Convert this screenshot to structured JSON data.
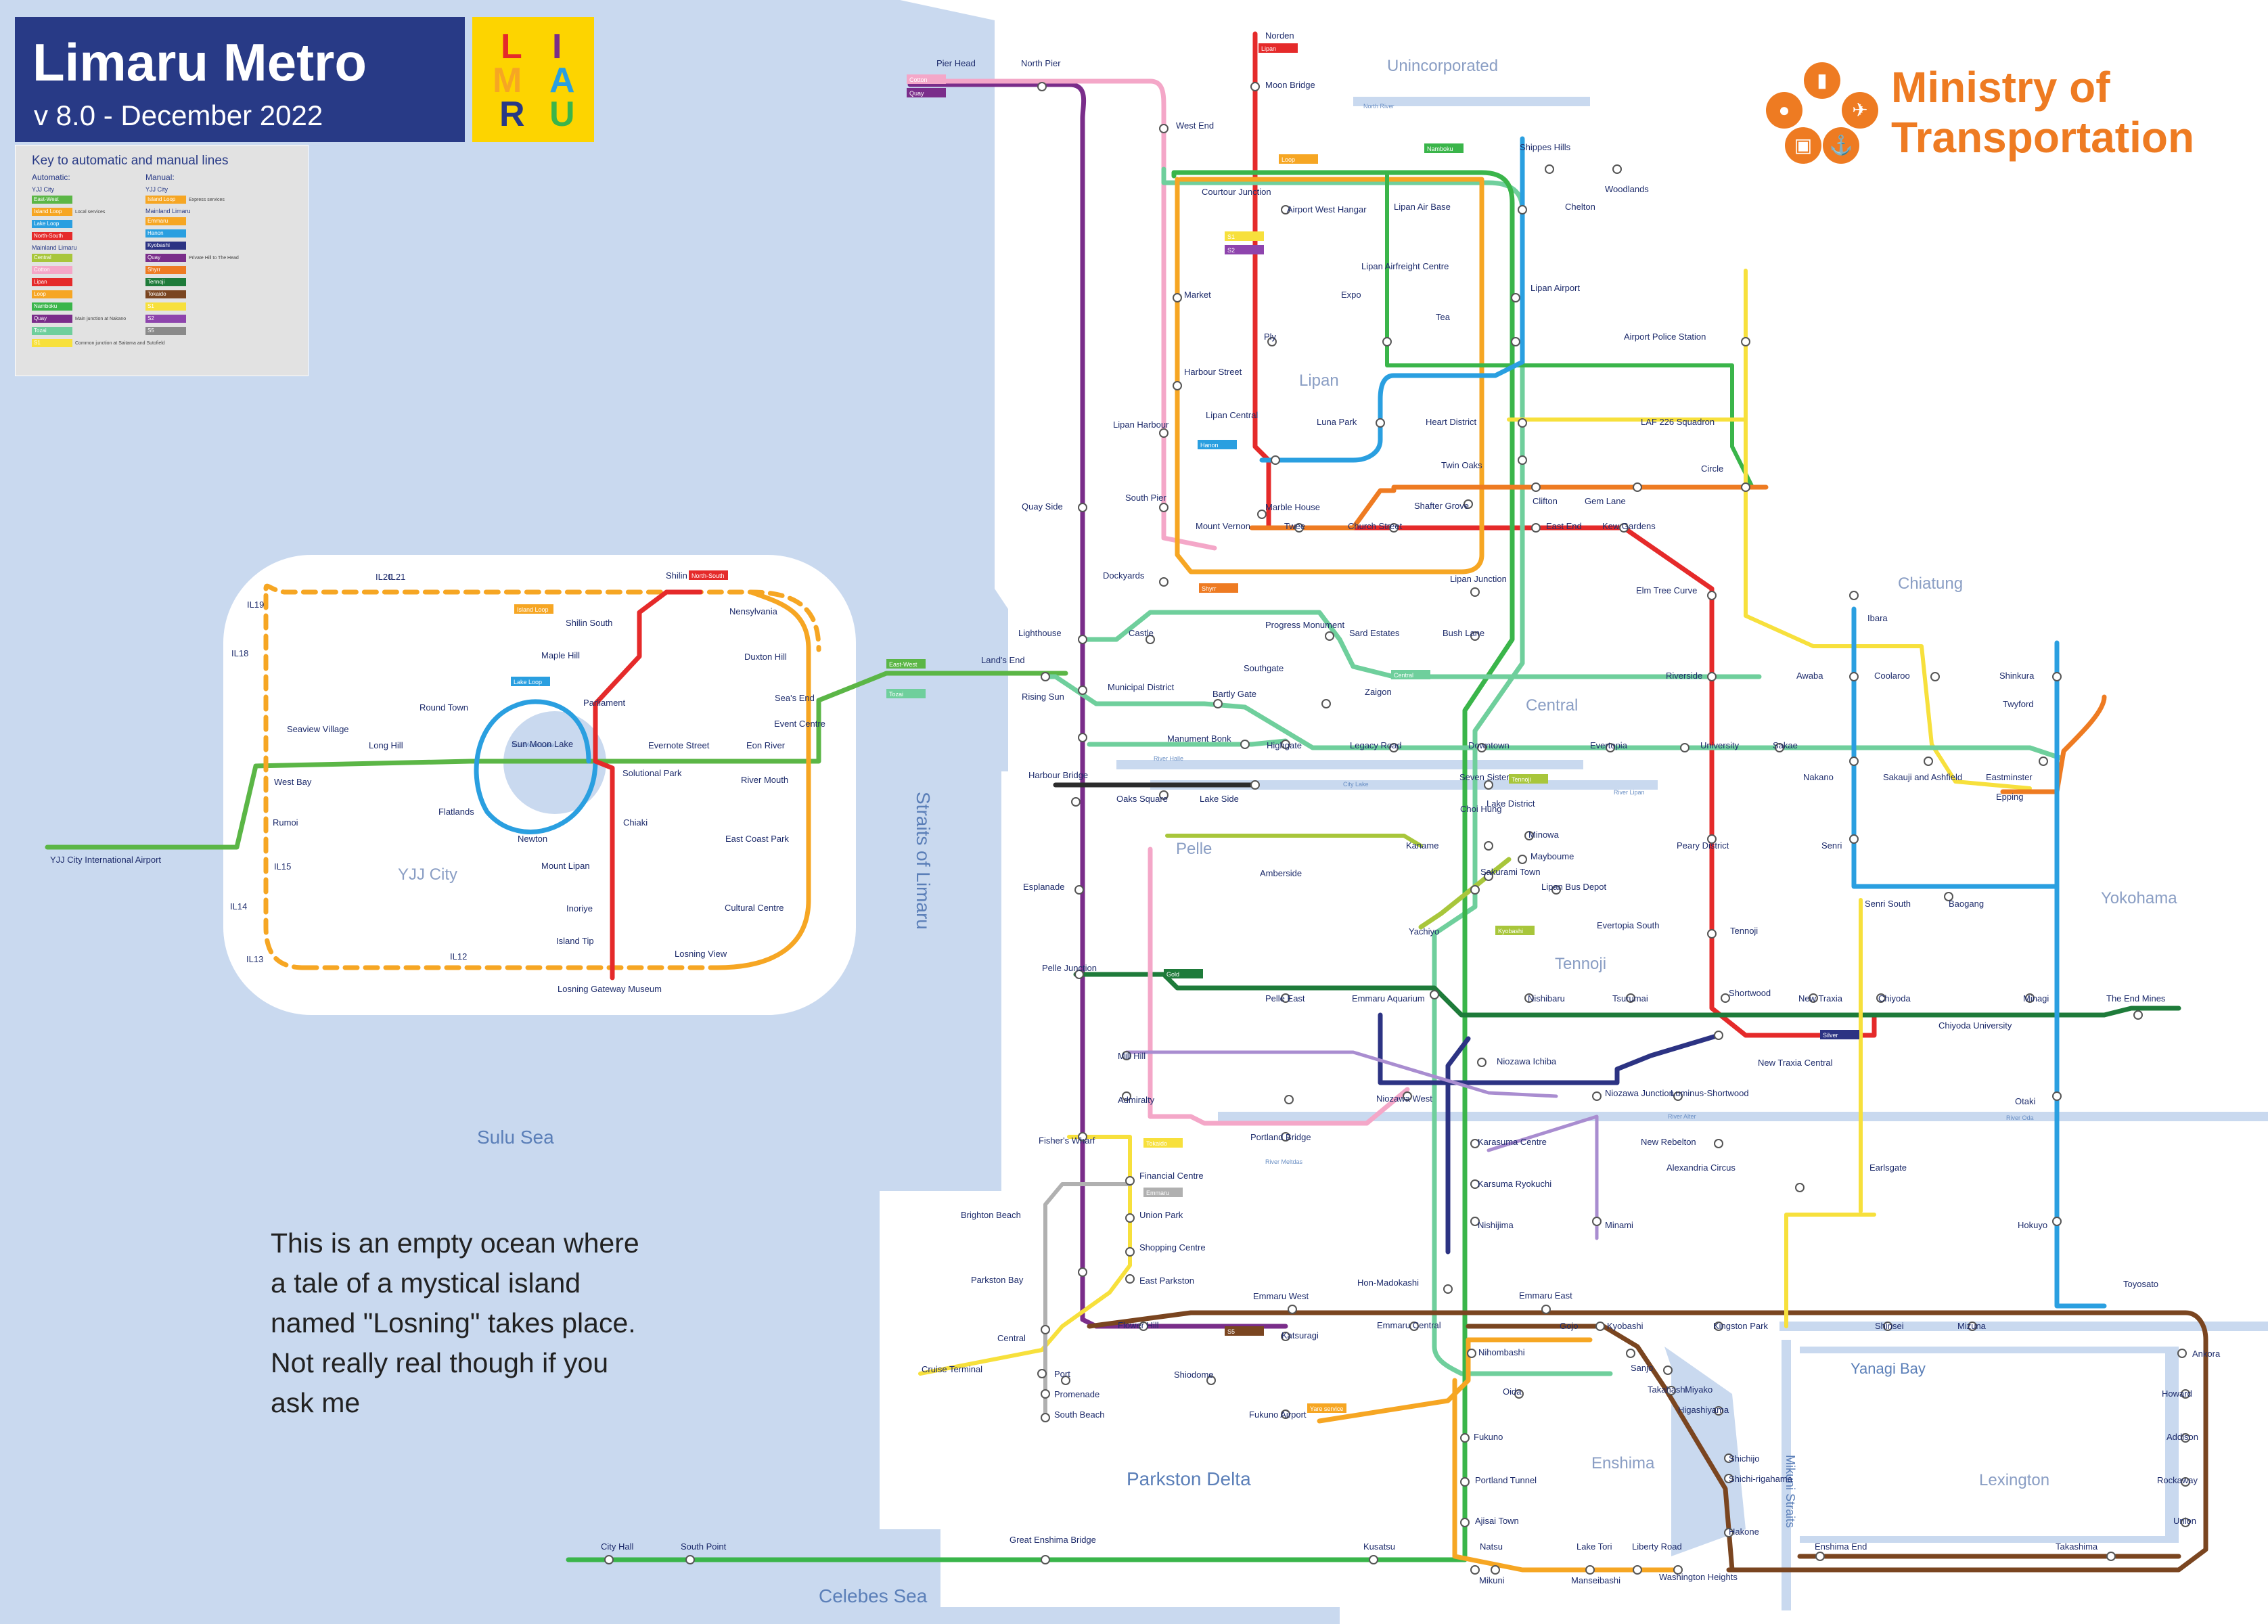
{
  "header": {
    "title": "Limaru Metro",
    "version": "v 8.0 - December 2022"
  },
  "logo": {
    "letters": [
      "L",
      "I",
      "M",
      "A",
      "R",
      "U"
    ]
  },
  "key": {
    "title": "Key to automatic and manual lines",
    "automatic_heading": "Automatic:",
    "manual_heading": "Manual:",
    "automatic_groups": [
      {
        "group": "YJJ City",
        "lines": [
          {
            "name": "East-West",
            "color": "#5bb646",
            "note": ""
          },
          {
            "name": "Island Loop",
            "color": "#f6a623",
            "note": "Local services"
          },
          {
            "name": "Lake Loop",
            "color": "#2a9fe0",
            "note": ""
          },
          {
            "name": "North-South",
            "color": "#e52a2a",
            "note": ""
          }
        ]
      },
      {
        "group": "Mainland Limaru",
        "lines": [
          {
            "name": "Central",
            "color": "#a8c63b",
            "note": ""
          },
          {
            "name": "Cotton",
            "color": "#f4a7c8",
            "note": ""
          },
          {
            "name": "Lipan",
            "color": "#e52a2a",
            "note": ""
          },
          {
            "name": "Loop",
            "color": "#f6a623",
            "note": ""
          },
          {
            "name": "Namboku",
            "color": "#3ab54a",
            "note": ""
          },
          {
            "name": "Quay",
            "color": "#7a2d8a",
            "note": "Main junction at Nakano"
          },
          {
            "name": "Tozai",
            "color": "#6fcf9c",
            "note": ""
          },
          {
            "name": "S1",
            "color": "#f7e03c",
            "note": "Common junction at Saitama and Sutofield"
          }
        ]
      }
    ],
    "manual_groups": [
      {
        "group": "YJJ City",
        "lines": [
          {
            "name": "Island Loop",
            "color": "#f6a623",
            "note": "Express services"
          }
        ]
      },
      {
        "group": "Mainland Limaru",
        "lines": [
          {
            "name": "Emmaru",
            "color": "#f6a623",
            "note": ""
          },
          {
            "name": "Hanon",
            "color": "#2a9fe0",
            "note": ""
          },
          {
            "name": "Kyobashi",
            "color": "#2c3383",
            "note": ""
          },
          {
            "name": "Quay",
            "color": "#7a2d8a",
            "note": "Private Hill to The Head"
          },
          {
            "name": "Shyrr",
            "color": "#ee7b22",
            "note": ""
          },
          {
            "name": "Tennoji",
            "color": "#1e7b3a",
            "note": ""
          },
          {
            "name": "Tokaido",
            "color": "#7a4520",
            "note": ""
          },
          {
            "name": "S1",
            "color": "#f7e03c",
            "note": ""
          },
          {
            "name": "S2",
            "color": "#8e44ad",
            "note": ""
          },
          {
            "name": "S5",
            "color": "#8a8a8a",
            "note": ""
          }
        ]
      }
    ]
  },
  "ministry": {
    "line1": "Ministry of",
    "line2": "Transportation",
    "icons": [
      "pedestrian-icon",
      "car-icon",
      "plane-icon",
      "train-icon",
      "anchor-icon"
    ]
  },
  "ocean_note": "This is an empty ocean where a tale of a mystical island named \"Losning\" takes place. Not really real though if you ask me",
  "line_colors": {
    "east_west": "#5bb646",
    "island_loop": "#f6a623",
    "lake_loop": "#2a9fe0",
    "north_south": "#e52a2a",
    "namboku": "#3ab54a",
    "lipan": "#e52a2a",
    "loop": "#f6a623",
    "cotton": "#f4a7c8",
    "quay": "#7a2d8a",
    "tozai": "#6fcf9c",
    "central": "#a8c63b",
    "tennoji": "#1e7b3a",
    "tokaido": "#7a4520",
    "shyrr": "#ee7b22",
    "hanon": "#2a9fe0",
    "kyobashi": "#2c3383",
    "s1": "#f7e03c",
    "s5": "#b0b0b0",
    "purple_light": "#a98dd0"
  },
  "labels": {
    "areas": [
      "Unincorporated",
      "Lipan",
      "Central",
      "Chiatung",
      "Pelle",
      "Tennoji",
      "Yokohama",
      "YJJ City",
      "Enshima",
      "Lexington"
    ],
    "waters": [
      "Sulu Sea",
      "Straits of Limaru",
      "Parkston Delta",
      "Celebes Sea",
      "Yanagi Bay",
      "Mikuni Straits"
    ],
    "rivers": [
      "North River",
      "Sun Moon Lake",
      "River Halle",
      "City Lake",
      "River Lipan",
      "River Alter",
      "River Oda",
      "River Meltdas"
    ],
    "stations": {
      "yjj": [
        "Shilin",
        "Nensylvania",
        "IL21",
        "IL20",
        "IL19",
        "IL18",
        "Shilin South",
        "Maple Hill",
        "Duxton Hill",
        "Round Town",
        "Parliament",
        "Sea's End",
        "Event Centre",
        "Seaview Village",
        "Long Hill",
        "Evernote Street",
        "Eon River",
        "Sun Moon Lake",
        "Solutional Park",
        "West Bay",
        "River Mouth",
        "Flatlands",
        "Rumoi",
        "Chiaki",
        "Newton",
        "East Coast Park",
        "YJJ City International Airport",
        "IL15",
        "Mount Lipan",
        "IL14",
        "Inoriye",
        "Cultural Centre",
        "Island Tip",
        "IL13",
        "IL12",
        "Losning View",
        "Losning Gateway Museum"
      ],
      "north": [
        "Norden",
        "Moon Bridge",
        "Pier Head",
        "North Pier",
        "West End",
        "Shippes Hills",
        "Woodlands",
        "Courtour Junction",
        "Airport West Hangar",
        "Lipan Air Base",
        "Chelton",
        "Market",
        "Lipan Airfreight Centre",
        "Expo",
        "Lipan Airport",
        "Tea",
        "Ply",
        "Airport Police Station",
        "Harbour Street",
        "Luna Park",
        "Heart District",
        "LAF 226 Squadron",
        "Lipan Harbour",
        "Lipan Central",
        "Twin Oaks",
        "Circle",
        "Quay Side",
        "South Pier",
        "Marble House",
        "Shafter Grove",
        "Clifton",
        "Gem Lane",
        "Mount Vernon",
        "Twee",
        "Church Street",
        "East End",
        "Kew Gardens"
      ],
      "central": [
        "Dockyards",
        "Lipan Junction",
        "Elm Tree Curve",
        "Ibara",
        "Lighthouse",
        "Castle",
        "Progress Monument",
        "Sard Estates",
        "Bush Lane",
        "Land's End",
        "Southgate",
        "Riverside",
        "Awaba",
        "Coolaroo",
        "Shinkura",
        "Rising Sun",
        "Municipal District",
        "Bartly Gate",
        "Zaigon",
        "Twyford",
        "Manument Bonk",
        "Highgate",
        "Legacy Road",
        "Downtown",
        "Evertopia",
        "University",
        "Sakae",
        "Harbour Bridge",
        "Seven Sisters",
        "Nakano",
        "Sakauji and Ashfield",
        "Eastminster",
        "Oaks Square",
        "Lake Side",
        "Choi Hung",
        "Epping",
        "Lake District",
        "Minowa",
        "Kaname",
        "Peary District",
        "Senri",
        "Mayboume",
        "Sakurami Town",
        "Amberside",
        "Lipan Bus Depot",
        "Senri South",
        "Baogang",
        "Esplanade",
        "Evertopia South",
        "Yachiyo",
        "Tennoji"
      ],
      "south": [
        "Pelle Junction",
        "Shortwood",
        "Pelle East",
        "Emmaru Aquarium",
        "Nishibaru",
        "Tsurumai",
        "New Traxia",
        "Chiyoda",
        "Minagi",
        "The End Mines",
        "Chiyoda University",
        "New Traxia Central",
        "Mill Hill",
        "Niozawa Ichiba",
        "Otaki",
        "Admiralty",
        "Niozawa West",
        "Niozawa Junction",
        "Luminus-Shortwood",
        "Fisher's Wharf",
        "Portland Bridge",
        "Karasuma Centre",
        "New Rebelton",
        "Financial Centre",
        "Alexandria Circus",
        "Earlsgate",
        "Karsuma Ryokuchi",
        "Brighton Beach",
        "Union Park",
        "Nishijima",
        "Minami",
        "Hokuyo",
        "Shopping Centre",
        "Parkston Bay",
        "East Parkston",
        "Hon-Madokashi",
        "Emmaru West",
        "Emmaru East",
        "Toyosato",
        "Central",
        "Flower Hill",
        "Katsuragi",
        "Emmaru Central",
        "Gojo",
        "Kyobashi",
        "Kingston Park",
        "Shinsei",
        "Mizuna",
        "Ankora",
        "Cruise Terminal",
        "Port",
        "Shiodome",
        "Nihombashi",
        "Sanjo",
        "Takahashi",
        "Promenade",
        "Oida",
        "Miyako",
        "Howard",
        "South Beach",
        "Fukuno Airport",
        "Higashiyama",
        "Fukuno",
        "Shichijo",
        "Addison",
        "Portland Tunnel",
        "Shichi-rigahama",
        "Rockaway",
        "Ajisai Town",
        "Hakone",
        "Union",
        "City Hall",
        "South Point",
        "Great Enshima Bridge",
        "Kusatsu",
        "Natsu",
        "Lake Tori",
        "Liberty Road",
        "Washington Heights",
        "Enshima End",
        "Takashima",
        "Mikuni",
        "Manseibashi"
      ]
    },
    "line_tags": [
      "North-South",
      "Island Loop",
      "Lake Loop",
      "East-West",
      "Tozai",
      "Lipan",
      "Cotton",
      "Quay",
      "Loop",
      "Namboku",
      "S1",
      "S2",
      "Hanon",
      "Shyrr",
      "Central",
      "Tennoji",
      "Kyobashi",
      "Gold",
      "Silver",
      "Tokaido",
      "Emmaru",
      "S5",
      "Yare service"
    ]
  }
}
